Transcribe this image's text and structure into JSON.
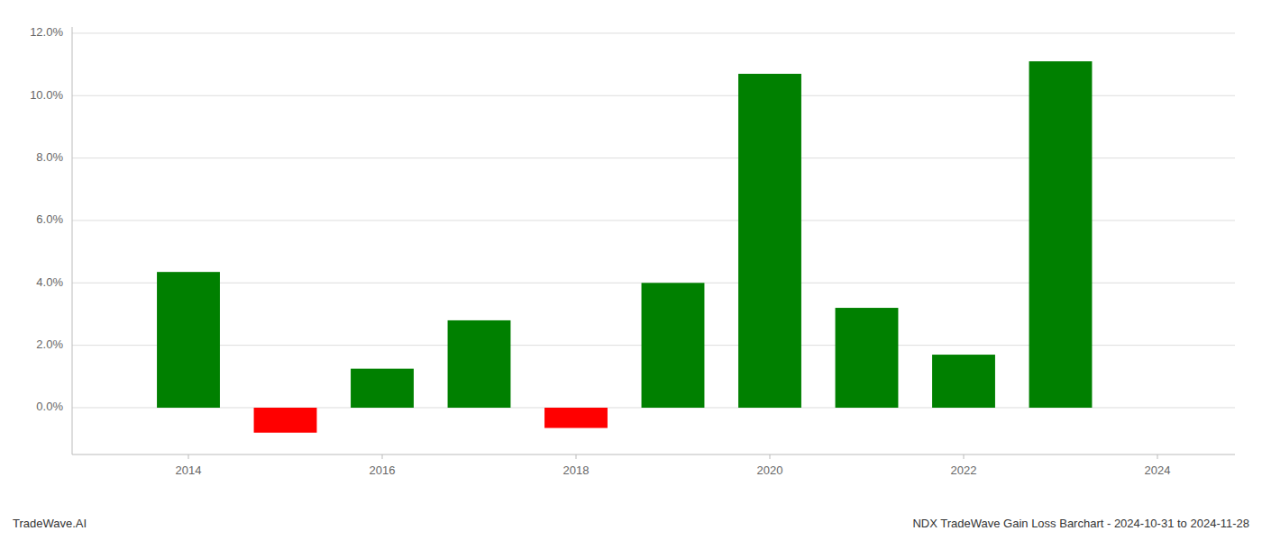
{
  "chart_data": {
    "type": "bar",
    "x": [
      2014,
      2015,
      2016,
      2017,
      2018,
      2019,
      2020,
      2021,
      2022,
      2023
    ],
    "values": [
      0.0435,
      -0.008,
      0.0125,
      0.028,
      -0.0065,
      0.04,
      0.107,
      0.032,
      0.017,
      0.111
    ],
    "colors": [
      "#008000",
      "#ff0000",
      "#008000",
      "#008000",
      "#ff0000",
      "#008000",
      "#008000",
      "#008000",
      "#008000",
      "#008000"
    ],
    "xlim": [
      2012.8,
      2024.8
    ],
    "xticks": [
      2014,
      2016,
      2018,
      2020,
      2022,
      2024
    ],
    "ylim": [
      -0.015,
      0.122
    ],
    "yticks": [
      {
        "value": 0,
        "label": "0.0%"
      },
      {
        "value": 0.02,
        "label": "2.0%"
      },
      {
        "value": 0.04,
        "label": "4.0%"
      },
      {
        "value": 0.06,
        "label": "6.0%"
      },
      {
        "value": 0.08,
        "label": "8.0%"
      },
      {
        "value": 0.1,
        "label": "10.0%"
      },
      {
        "value": 0.12,
        "label": "12.0%"
      }
    ],
    "grid": true,
    "annotations": [
      "TradeWave.AI",
      "NDX TradeWave Gain Loss Barchart - 2024-10-31 to 2024-11-28"
    ]
  }
}
